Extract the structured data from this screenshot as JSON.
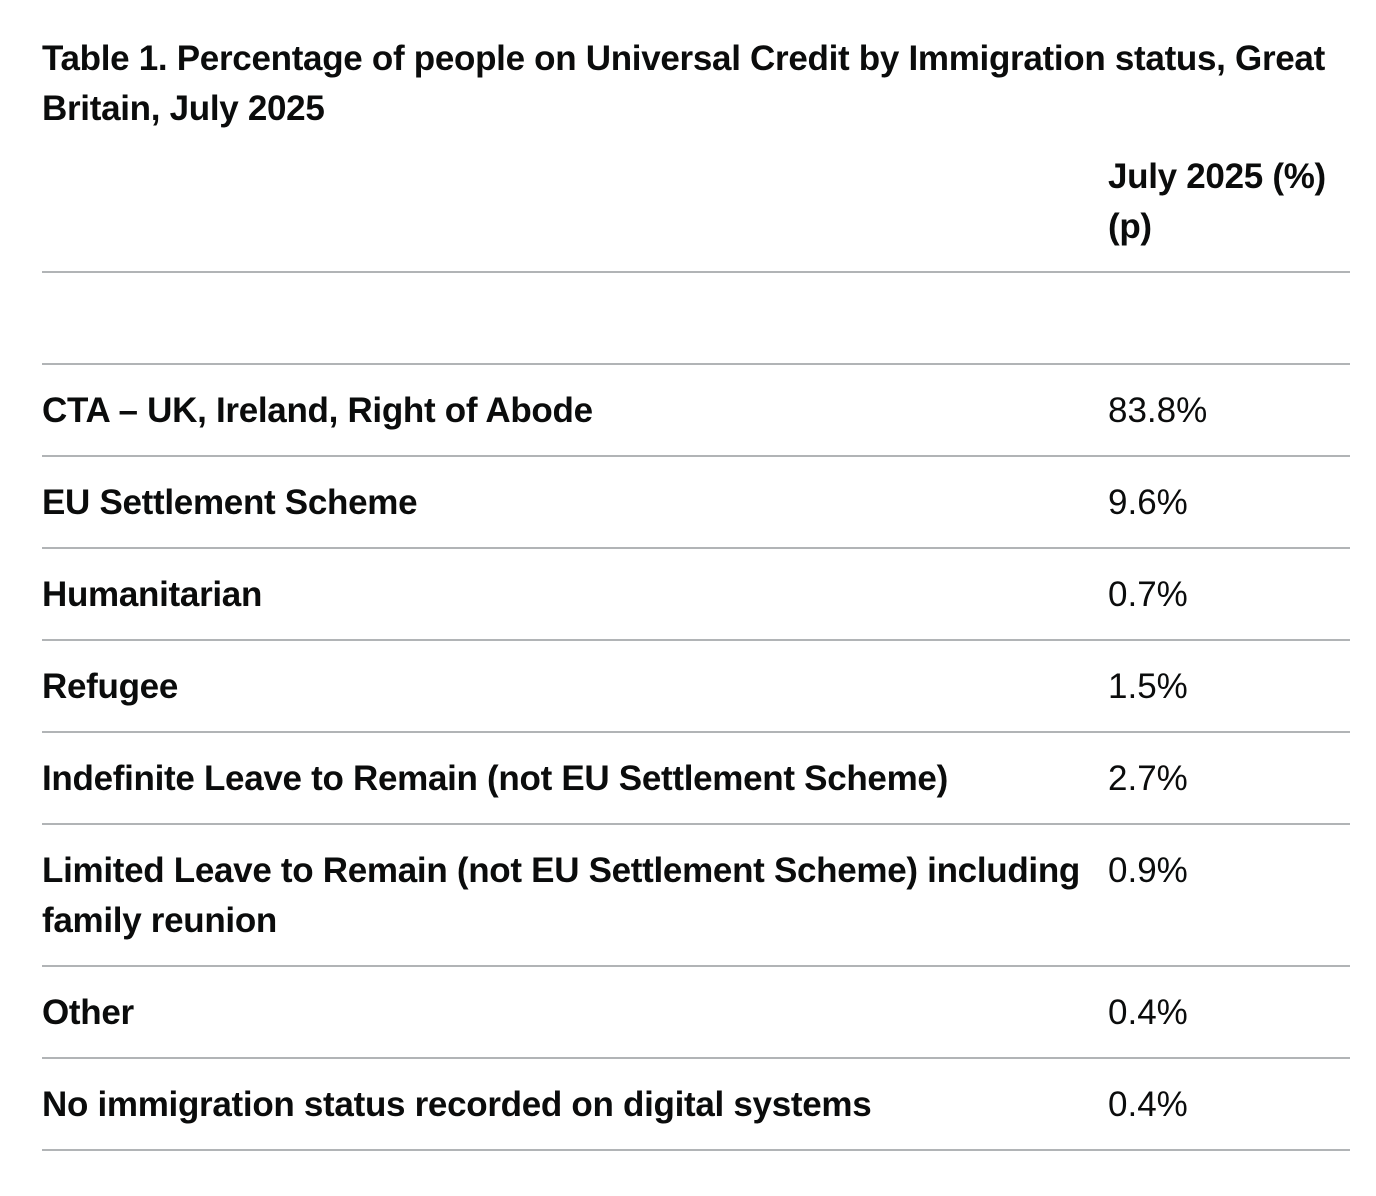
{
  "table": {
    "caption": "Table 1. Percentage of people on Universal Credit by Immigration status, Great Britain, July 2025",
    "header": {
      "label_column": "",
      "value_column": "July 2025 (%) (p)"
    },
    "rows": [
      {
        "label": "CTA – UK, Ireland, Right of Abode",
        "value": "83.8%"
      },
      {
        "label": "EU Settlement Scheme",
        "value": "9.6%"
      },
      {
        "label": "Humanitarian",
        "value": "0.7%"
      },
      {
        "label": "Refugee",
        "value": "1.5%"
      },
      {
        "label": "Indefinite Leave to Remain (not EU Settlement Scheme)",
        "value": "2.7%"
      },
      {
        "label": "Limited Leave to Remain (not EU Settlement Scheme) including family reunion",
        "value": "0.9%"
      },
      {
        "label": "Other",
        "value": "0.4%"
      },
      {
        "label": "No immigration status recorded on digital systems",
        "value": "0.4%"
      }
    ]
  },
  "colors": {
    "text": "#0b0c0c",
    "border": "#b1b4b6",
    "background": "#ffffff"
  }
}
